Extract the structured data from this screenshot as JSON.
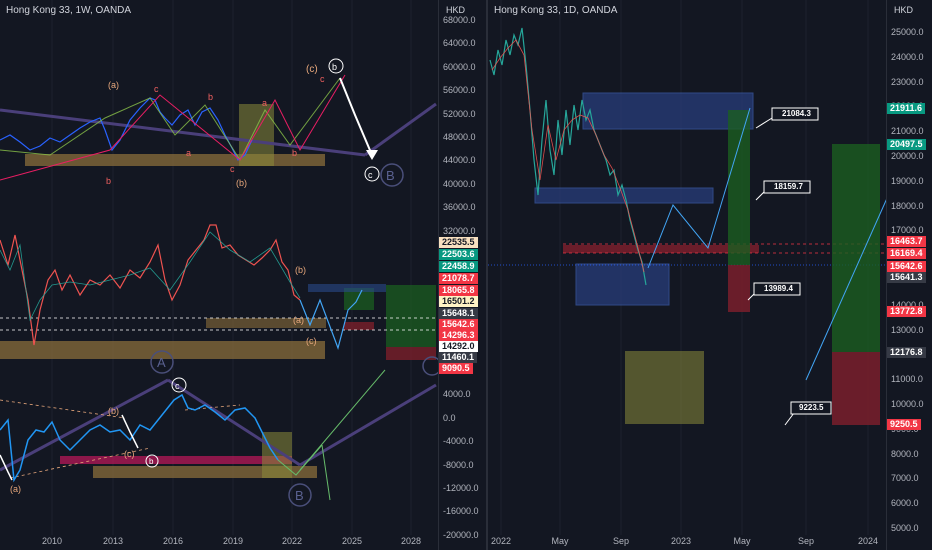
{
  "left_chart": {
    "title": "Hong Kong 33, 1W, OANDA",
    "unit": "HKD",
    "y_ticks": [
      "68000.0",
      "64000.0",
      "60000.0",
      "56000.0",
      "52000.0",
      "48000.0",
      "44000.0",
      "40000.0",
      "36000.0",
      "32000.0",
      "28000.0",
      "24000.0",
      "20000.0",
      "16000.0",
      "12000.0",
      "8000.0",
      "4000.0",
      "0.0",
      "-4000.0",
      "-8000.0",
      "-12000.0",
      "-16000.0",
      "-20000.0"
    ],
    "x_ticks": [
      "2010",
      "2013",
      "2016",
      "2019",
      "2022",
      "2025",
      "2028"
    ],
    "price_tags": [
      {
        "value": "22535.5",
        "bg": "#f8e0c0",
        "fg": "#131722"
      },
      {
        "value": "22503.6",
        "bg": "#089981",
        "fg": "#ffffff"
      },
      {
        "value": "22458.9",
        "bg": "#089981",
        "fg": "#ffffff"
      },
      {
        "value": "21078.7",
        "bg": "#f23645",
        "fg": "#ffffff"
      },
      {
        "value": "18065.8",
        "bg": "#f23645",
        "fg": "#ffffff"
      },
      {
        "value": "16501.2",
        "bg": "#fff3c4",
        "fg": "#131722"
      },
      {
        "value": "15648.1",
        "bg": "#363a45",
        "fg": "#ffffff"
      },
      {
        "value": "15642.6",
        "bg": "#f23645",
        "fg": "#ffffff"
      },
      {
        "value": "14296.3",
        "bg": "#f23645",
        "fg": "#ffffff"
      },
      {
        "value": "14292.0",
        "bg": "#ffffff",
        "fg": "#131722"
      },
      {
        "value": "11460.1",
        "bg": "#363a45",
        "fg": "#ffffff"
      },
      {
        "value": "9090.5",
        "bg": "#f23645",
        "fg": "#ffffff"
      }
    ],
    "wave_labels_top": [
      "(a)",
      "c",
      "b",
      "a",
      "b",
      "c",
      "(b)",
      "a",
      "b",
      "c",
      "(c)",
      "b",
      "c",
      "B"
    ],
    "wave_labels_mid": [
      "(b)",
      "(a)",
      "(c)",
      "A"
    ],
    "wave_labels_bottom": [
      "(b)",
      "(c)",
      "b",
      "c",
      "(a)",
      "B"
    ]
  },
  "right_chart": {
    "title": "Hong Kong 33, 1D, OANDA",
    "unit": "HKD",
    "y_ticks": [
      "25000.0",
      "24000.0",
      "23000.0",
      "22000.0",
      "21000.0",
      "20000.0",
      "19000.0",
      "18000.0",
      "17000.0",
      "16000.0",
      "15000.0",
      "14000.0",
      "13000.0",
      "12000.0",
      "11000.0",
      "10000.0",
      "9000.0",
      "8000.0",
      "7000.0",
      "6000.0",
      "5000.0"
    ],
    "x_ticks": [
      "2022",
      "May",
      "Sep",
      "2023",
      "May",
      "Sep",
      "2024"
    ],
    "price_tags": [
      {
        "value": "21911.6",
        "bg": "#089981",
        "fg": "#ffffff"
      },
      {
        "value": "20497.5",
        "bg": "#089981",
        "fg": "#ffffff"
      },
      {
        "value": "16463.7",
        "bg": "#f23645",
        "fg": "#ffffff"
      },
      {
        "value": "16169.4",
        "bg": "#f23645",
        "fg": "#ffffff"
      },
      {
        "value": "15642.6",
        "bg": "#f23645",
        "fg": "#ffffff"
      },
      {
        "value": "15641.3",
        "bg": "#363a45",
        "fg": "#ffffff"
      },
      {
        "value": "13772.8",
        "bg": "#f23645",
        "fg": "#ffffff"
      },
      {
        "value": "12176.8",
        "bg": "#363a45",
        "fg": "#ffffff"
      },
      {
        "value": "9250.5",
        "bg": "#f23645",
        "fg": "#ffffff"
      }
    ],
    "callouts": [
      "21084.3",
      "18159.7",
      "13989.4",
      "9223.5"
    ]
  }
}
